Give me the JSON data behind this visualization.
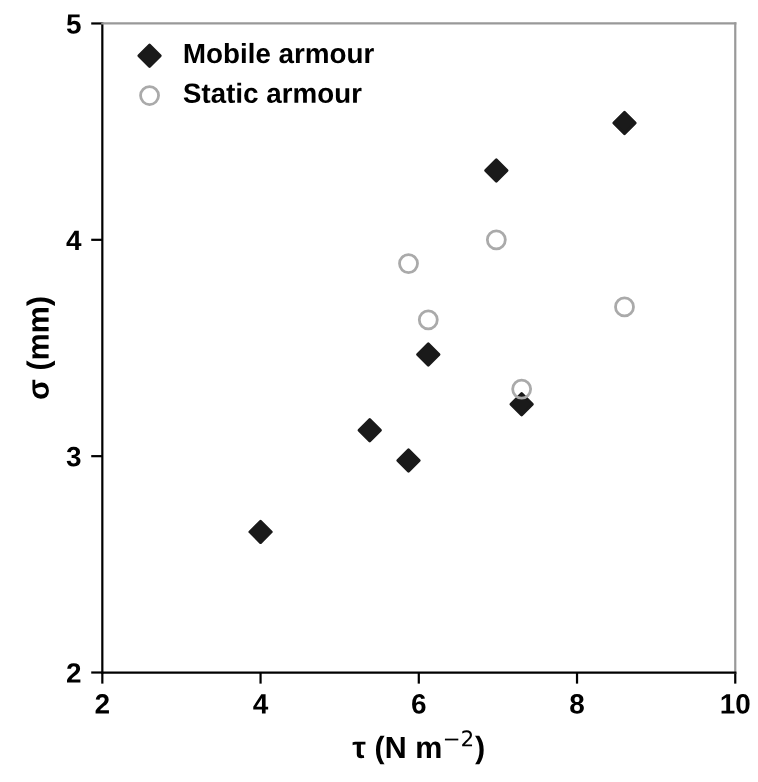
{
  "chart_data": {
    "type": "scatter",
    "xlabel": "τ (N m$^{−2}$)",
    "ylabel": "σ (mm)",
    "xlim": [
      2,
      10
    ],
    "xticks": [
      2,
      4,
      6,
      8,
      10
    ],
    "ylim": [
      2,
      5
    ],
    "yticks": [
      2,
      3,
      4,
      5
    ],
    "legend": "top left",
    "grid": false,
    "series": [
      {
        "name": "Mobile armour",
        "color": "#1a1a1a",
        "marker": "diamond",
        "x": [
          4.0,
          5.38,
          5.87,
          6.12,
          6.98,
          7.3,
          8.6
        ],
        "values": [
          2.65,
          3.12,
          2.98,
          3.47,
          4.32,
          3.24,
          4.54
        ]
      },
      {
        "name": "Static armour",
        "color": "#aaaaaa",
        "marker": "circle",
        "x": [
          5.87,
          6.12,
          6.98,
          7.3,
          8.6
        ],
        "values": [
          3.89,
          3.63,
          4.0,
          3.31,
          3.69
        ]
      }
    ]
  }
}
